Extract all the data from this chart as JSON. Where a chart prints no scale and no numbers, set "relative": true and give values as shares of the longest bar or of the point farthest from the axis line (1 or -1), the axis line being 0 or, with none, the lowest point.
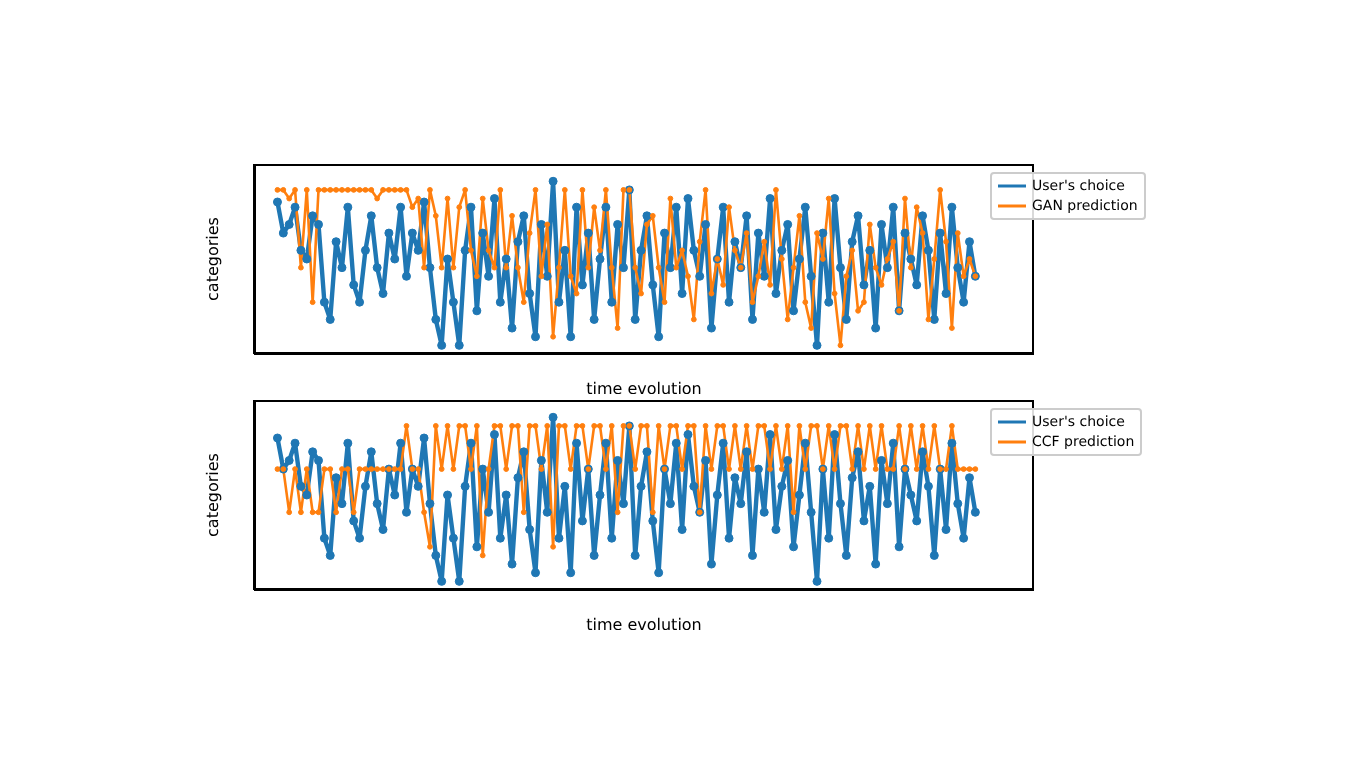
{
  "chart_data": [
    {
      "type": "line",
      "xlabel": "time evolution",
      "ylabel": "categories",
      "relative": true,
      "grid": false,
      "legend": "top right",
      "marker": "circle",
      "line_style": "solid",
      "categories": [
        null,
        null,
        null,
        null,
        null,
        null,
        null,
        null,
        null,
        null,
        null,
        null,
        null,
        null,
        null,
        null,
        null,
        null,
        null,
        null,
        null,
        null,
        null,
        null,
        null,
        null,
        null,
        null,
        null,
        null,
        null,
        null,
        null,
        null,
        null,
        null,
        null,
        null,
        null,
        null,
        null,
        null,
        null,
        null,
        null,
        null,
        null,
        null,
        null,
        null,
        null,
        null,
        null,
        null,
        null,
        null,
        null,
        null,
        null,
        null,
        null,
        null,
        null,
        null,
        null,
        null,
        null,
        null,
        null,
        null,
        null,
        null,
        null,
        null,
        null,
        null,
        null,
        null,
        null,
        null,
        null,
        null,
        null,
        null,
        null,
        null,
        null,
        null,
        null,
        null,
        null,
        null,
        null,
        null,
        null,
        null,
        null,
        null,
        null,
        null,
        null,
        null,
        null,
        null,
        null,
        null,
        null,
        null,
        null,
        null,
        null,
        null,
        null,
        null,
        null,
        null,
        null,
        null,
        null,
        null
      ],
      "series": [
        {
          "name": "User's choice",
          "color": "#1f77b4",
          "values": [
            0.88,
            0.7,
            0.75,
            0.85,
            0.6,
            0.55,
            0.8,
            0.75,
            0.3,
            0.2,
            0.65,
            0.5,
            0.85,
            0.4,
            0.3,
            0.6,
            0.8,
            0.5,
            0.35,
            0.7,
            0.55,
            0.85,
            0.45,
            0.7,
            0.6,
            0.88,
            0.5,
            0.2,
            0.05,
            0.55,
            0.3,
            0.05,
            0.6,
            0.85,
            0.25,
            0.7,
            0.45,
            0.9,
            0.3,
            0.55,
            0.15,
            0.65,
            0.8,
            0.35,
            0.1,
            0.75,
            0.45,
            1,
            0.3,
            0.6,
            0.1,
            0.85,
            0.4,
            0.7,
            0.2,
            0.55,
            0.85,
            0.3,
            0.75,
            0.5,
            0.95,
            0.2,
            0.6,
            0.8,
            0.4,
            0.1,
            0.7,
            0.5,
            0.85,
            0.35,
            0.9,
            0.6,
            0.45,
            0.75,
            0.15,
            0.55,
            0.85,
            0.3,
            0.65,
            0.5,
            0.8,
            0.2,
            0.7,
            0.45,
            0.9,
            0.35,
            0.6,
            0.75,
            0.25,
            0.55,
            0.85,
            0.45,
            0.05,
            0.7,
            0.3,
            0.9,
            0.5,
            0.2,
            0.65,
            0.8,
            0.4,
            0.6,
            0.15,
            0.75,
            0.5,
            0.85,
            0.25,
            0.7,
            0.55,
            0.4,
            0.8,
            0.6,
            0.2,
            0.7,
            0.35,
            0.85,
            0.5,
            0.3,
            0.65,
            0.45
          ]
        },
        {
          "name": "GAN prediction",
          "color": "#ff7f0e",
          "values": [
            0.95,
            0.95,
            0.9,
            0.95,
            0.5,
            0.95,
            0.3,
            0.95,
            0.95,
            0.95,
            0.95,
            0.95,
            0.95,
            0.95,
            0.95,
            0.95,
            0.95,
            0.9,
            0.95,
            0.95,
            0.95,
            0.95,
            0.95,
            0.85,
            0.9,
            0.5,
            0.95,
            0.8,
            0.5,
            0.9,
            0.5,
            0.85,
            0.95,
            0.6,
            0.45,
            0.9,
            0.6,
            0.5,
            0.95,
            0.5,
            0.8,
            0.5,
            0.3,
            0.7,
            0.95,
            0.45,
            0.75,
            0.1,
            0.5,
            0.95,
            0.45,
            0.35,
            0.95,
            0.5,
            0.85,
            0.6,
            0.95,
            0.5,
            0.15,
            0.95,
            0.95,
            0.5,
            0.35,
            0.75,
            0.8,
            0.5,
            0.3,
            0.9,
            0.5,
            0.6,
            0.45,
            0.2,
            0.65,
            0.95,
            0.35,
            0.55,
            0.4,
            0.85,
            0.6,
            0.5,
            0.7,
            0.3,
            0.45,
            0.65,
            0.4,
            0.95,
            0.55,
            0.2,
            0.5,
            0.8,
            0.3,
            0.15,
            0.7,
            0.55,
            0.9,
            0.35,
            0.05,
            0.45,
            0.6,
            0.25,
            0.3,
            0.75,
            0.5,
            0.4,
            0.55,
            0.65,
            0.25,
            0.9,
            0.5,
            0.85,
            0.7,
            0.2,
            0.55,
            0.95,
            0.65,
            0.15,
            0.7,
            0.45,
            0.55,
            0.45
          ]
        }
      ]
    },
    {
      "type": "line",
      "xlabel": "time evolution",
      "ylabel": "categories",
      "relative": true,
      "grid": false,
      "legend": "top right",
      "marker": "circle",
      "line_style": "solid",
      "categories": [
        null,
        null,
        null,
        null,
        null,
        null,
        null,
        null,
        null,
        null,
        null,
        null,
        null,
        null,
        null,
        null,
        null,
        null,
        null,
        null,
        null,
        null,
        null,
        null,
        null,
        null,
        null,
        null,
        null,
        null,
        null,
        null,
        null,
        null,
        null,
        null,
        null,
        null,
        null,
        null,
        null,
        null,
        null,
        null,
        null,
        null,
        null,
        null,
        null,
        null,
        null,
        null,
        null,
        null,
        null,
        null,
        null,
        null,
        null,
        null,
        null,
        null,
        null,
        null,
        null,
        null,
        null,
        null,
        null,
        null,
        null,
        null,
        null,
        null,
        null,
        null,
        null,
        null,
        null,
        null,
        null,
        null,
        null,
        null,
        null,
        null,
        null,
        null,
        null,
        null,
        null,
        null,
        null,
        null,
        null,
        null,
        null,
        null,
        null,
        null,
        null,
        null,
        null,
        null,
        null,
        null,
        null,
        null,
        null,
        null,
        null,
        null,
        null,
        null,
        null,
        null,
        null,
        null,
        null,
        null
      ],
      "series": [
        {
          "name": "User's choice",
          "color": "#1f77b4",
          "values": [
            0.88,
            0.7,
            0.75,
            0.85,
            0.6,
            0.55,
            0.8,
            0.75,
            0.3,
            0.2,
            0.65,
            0.5,
            0.85,
            0.4,
            0.3,
            0.6,
            0.8,
            0.5,
            0.35,
            0.7,
            0.55,
            0.85,
            0.45,
            0.7,
            0.6,
            0.88,
            0.5,
            0.2,
            0.05,
            0.55,
            0.3,
            0.05,
            0.6,
            0.85,
            0.25,
            0.7,
            0.45,
            0.9,
            0.3,
            0.55,
            0.15,
            0.65,
            0.8,
            0.35,
            0.1,
            0.75,
            0.45,
            1,
            0.3,
            0.6,
            0.1,
            0.85,
            0.4,
            0.7,
            0.2,
            0.55,
            0.85,
            0.3,
            0.75,
            0.5,
            0.95,
            0.2,
            0.6,
            0.8,
            0.4,
            0.1,
            0.7,
            0.5,
            0.85,
            0.35,
            0.9,
            0.6,
            0.45,
            0.75,
            0.15,
            0.55,
            0.85,
            0.3,
            0.65,
            0.5,
            0.8,
            0.2,
            0.7,
            0.45,
            0.9,
            0.35,
            0.6,
            0.75,
            0.25,
            0.55,
            0.85,
            0.45,
            0.05,
            0.7,
            0.3,
            0.9,
            0.5,
            0.2,
            0.65,
            0.8,
            0.4,
            0.6,
            0.15,
            0.75,
            0.5,
            0.85,
            0.25,
            0.7,
            0.55,
            0.4,
            0.8,
            0.6,
            0.2,
            0.7,
            0.35,
            0.85,
            0.5,
            0.3,
            0.65,
            0.45
          ]
        },
        {
          "name": "CCF prediction",
          "color": "#ff7f0e",
          "values": [
            0.7,
            0.7,
            0.45,
            0.7,
            0.45,
            0.7,
            0.45,
            0.45,
            0.7,
            0.7,
            0.45,
            0.7,
            0.7,
            0.45,
            0.7,
            0.7,
            0.7,
            0.7,
            0.7,
            0.7,
            0.7,
            0.7,
            0.95,
            0.7,
            0.7,
            0.45,
            0.25,
            0.95,
            0.7,
            0.95,
            0.7,
            0.95,
            0.95,
            0.7,
            0.95,
            0.2,
            0.7,
            0.95,
            0.95,
            0.7,
            0.95,
            0.95,
            0.45,
            0.95,
            0.95,
            0.7,
            0.95,
            0.25,
            0.95,
            0.95,
            0.7,
            0.95,
            0.95,
            0.7,
            0.95,
            0.95,
            0.7,
            0.95,
            0.45,
            0.95,
            0.95,
            0.7,
            0.95,
            0.95,
            0.45,
            0.95,
            0.7,
            0.95,
            0.95,
            0.7,
            0.95,
            0.95,
            0.45,
            0.95,
            0.7,
            0.95,
            0.95,
            0.7,
            0.95,
            0.7,
            0.95,
            0.7,
            0.95,
            0.95,
            0.7,
            0.95,
            0.7,
            0.95,
            0.45,
            0.95,
            0.7,
            0.95,
            0.95,
            0.7,
            0.95,
            0.7,
            0.95,
            0.95,
            0.7,
            0.95,
            0.7,
            0.95,
            0.7,
            0.95,
            0.7,
            0.7,
            0.95,
            0.7,
            0.95,
            0.7,
            0.95,
            0.7,
            0.95,
            0.7,
            0.7,
            0.95,
            0.7,
            0.7,
            0.7,
            0.7
          ]
        }
      ]
    }
  ]
}
